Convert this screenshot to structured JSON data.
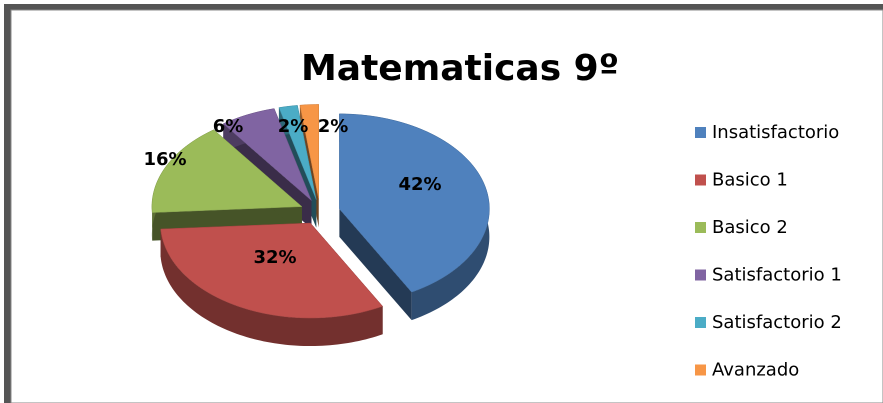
{
  "chart_data": {
    "type": "pie",
    "title": "Matematicas 9º",
    "categories": [
      "Insatisfactorio",
      "Basico 1",
      "Basico 2",
      "Satisfactorio 1",
      "Satisfactorio 2",
      "Avanzado"
    ],
    "values": [
      42,
      32,
      16,
      6,
      2,
      2
    ],
    "value_labels": [
      "42%",
      "32%",
      "16%",
      "6%",
      "2%",
      "2%"
    ],
    "colors": [
      "#4f81bd",
      "#c0504d",
      "#9bbb59",
      "#8064a2",
      "#4bacc6",
      "#f79646"
    ],
    "legend": "right"
  }
}
